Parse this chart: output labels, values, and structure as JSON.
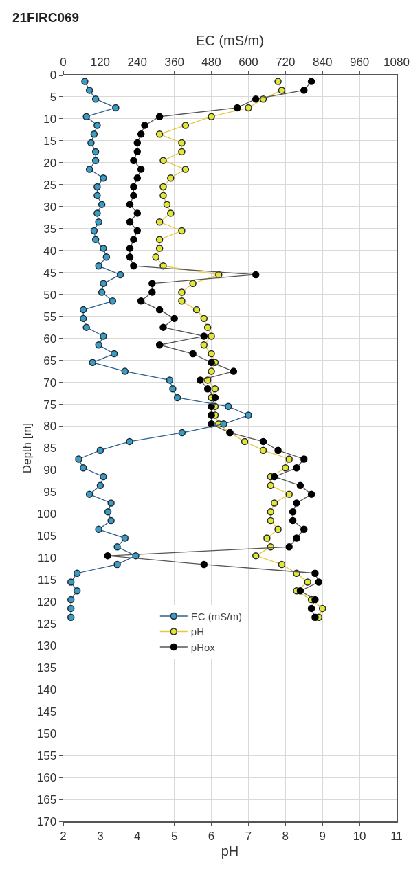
{
  "chart_data": {
    "type": "line",
    "title": "21FIRC069",
    "xlabel": "pH",
    "x2label": "EC (mS/m)",
    "ylabel": "Depth [m]",
    "xlim": [
      2,
      11
    ],
    "xticks": [
      2,
      3,
      4,
      5,
      6,
      7,
      8,
      9,
      10,
      11
    ],
    "x2lim": [
      0,
      1080
    ],
    "x2ticks": [
      0,
      120,
      240,
      360,
      480,
      600,
      720,
      840,
      960,
      1080
    ],
    "ylim": [
      170,
      0
    ],
    "yticks": [
      0,
      5,
      10,
      15,
      20,
      25,
      30,
      35,
      40,
      45,
      50,
      55,
      60,
      65,
      70,
      75,
      80,
      85,
      90,
      95,
      100,
      105,
      110,
      115,
      120,
      125,
      130,
      135,
      140,
      145,
      150,
      155,
      160,
      165,
      170
    ],
    "grid": true,
    "legend": "bottom",
    "marker": "circle",
    "line_style": "solid",
    "series": [
      {
        "name": "EC (mS/m)",
        "color": "#3b9cc4",
        "axis": "x2",
        "x": [
          70,
          85,
          105,
          170,
          75,
          110,
          100,
          90,
          105,
          105,
          85,
          130,
          110,
          110,
          125,
          110,
          115,
          100,
          105,
          130,
          140,
          115,
          185,
          130,
          125,
          160,
          65,
          65,
          75,
          130,
          115,
          165,
          95,
          200,
          345,
          355,
          370,
          535,
          600,
          520,
          385,
          215,
          120,
          50,
          65,
          130,
          120,
          85,
          155,
          145,
          155,
          115,
          200,
          175,
          235,
          175,
          45,
          25,
          45,
          25,
          25,
          25
        ],
        "values": [
          1.5,
          3.5,
          5.5,
          7.5,
          9.5,
          11.5,
          13.5,
          15.5,
          17.5,
          19.5,
          21.5,
          23.5,
          25.5,
          27.5,
          29.5,
          31.5,
          33.5,
          35.5,
          37.5,
          39.5,
          41.5,
          43.5,
          45.5,
          47.5,
          49.5,
          51.5,
          53.5,
          55.5,
          57.5,
          59.5,
          61.5,
          63.5,
          65.5,
          67.5,
          69.5,
          71.5,
          73.5,
          75.5,
          77.5,
          79.5,
          81.5,
          83.5,
          85.5,
          87.5,
          89.5,
          91.5,
          93.5,
          95.5,
          97.5,
          99.5,
          101.5,
          103.5,
          105.5,
          107.5,
          109.5,
          111.5,
          113.5,
          115.5,
          117.5,
          119.5,
          121.5,
          123.5
        ]
      },
      {
        "name": "pH",
        "color": "#e6e632",
        "x": [
          7.8,
          7.9,
          7.4,
          7.0,
          6.0,
          5.3,
          4.6,
          5.2,
          5.2,
          4.7,
          5.3,
          4.9,
          4.7,
          4.7,
          4.8,
          4.9,
          4.6,
          5.2,
          4.6,
          4.6,
          4.5,
          4.7,
          6.2,
          5.5,
          5.2,
          5.2,
          5.6,
          5.8,
          5.9,
          6.0,
          5.8,
          6.0,
          6.1,
          6.0,
          5.9,
          6.1,
          6.0,
          6.1,
          6.1,
          6.2,
          6.5,
          6.9,
          7.4,
          8.1,
          8.0,
          7.6,
          7.6,
          8.1,
          7.7,
          7.6,
          7.6,
          7.8,
          7.5,
          7.6,
          7.2,
          7.9,
          8.3,
          8.6,
          8.3,
          8.7,
          9.0,
          8.9
        ],
        "values": [
          1.5,
          3.5,
          5.5,
          7.5,
          9.5,
          11.5,
          13.5,
          15.5,
          17.5,
          19.5,
          21.5,
          23.5,
          25.5,
          27.5,
          29.5,
          31.5,
          33.5,
          35.5,
          37.5,
          39.5,
          41.5,
          43.5,
          45.5,
          47.5,
          49.5,
          51.5,
          53.5,
          55.5,
          57.5,
          59.5,
          61.5,
          63.5,
          65.5,
          67.5,
          69.5,
          71.5,
          73.5,
          75.5,
          77.5,
          79.5,
          81.5,
          83.5,
          85.5,
          87.5,
          89.5,
          91.5,
          93.5,
          95.5,
          97.5,
          99.5,
          101.5,
          103.5,
          105.5,
          107.5,
          109.5,
          111.5,
          113.5,
          115.5,
          117.5,
          119.5,
          121.5,
          123.5
        ]
      },
      {
        "name": "pHox",
        "color": "#000000",
        "x": [
          8.7,
          8.5,
          7.2,
          6.7,
          4.6,
          4.2,
          4.1,
          4.0,
          4.0,
          3.9,
          4.1,
          4.0,
          3.9,
          3.9,
          3.8,
          4.0,
          3.8,
          4.0,
          3.9,
          3.8,
          3.8,
          3.9,
          7.2,
          4.4,
          4.4,
          4.1,
          4.6,
          5.0,
          4.7,
          5.8,
          4.6,
          5.5,
          6.0,
          6.6,
          5.7,
          5.9,
          6.1,
          6.0,
          6.0,
          6.0,
          6.5,
          7.4,
          7.8,
          8.5,
          8.3,
          7.7,
          8.4,
          8.7,
          8.3,
          8.2,
          8.2,
          8.5,
          8.3,
          8.1,
          3.2,
          5.8,
          8.8,
          8.9,
          8.4,
          8.8,
          8.7,
          8.8
        ],
        "values": [
          1.5,
          3.5,
          5.5,
          7.5,
          9.5,
          11.5,
          13.5,
          15.5,
          17.5,
          19.5,
          21.5,
          23.5,
          25.5,
          27.5,
          29.5,
          31.5,
          33.5,
          35.5,
          37.5,
          39.5,
          41.5,
          43.5,
          45.5,
          47.5,
          49.5,
          51.5,
          53.5,
          55.5,
          57.5,
          59.5,
          61.5,
          63.5,
          65.5,
          67.5,
          69.5,
          71.5,
          73.5,
          75.5,
          77.5,
          79.5,
          81.5,
          83.5,
          85.5,
          87.5,
          89.5,
          91.5,
          93.5,
          95.5,
          97.5,
          99.5,
          101.5,
          103.5,
          105.5,
          107.5,
          109.5,
          111.5,
          113.5,
          115.5,
          117.5,
          119.5,
          121.5,
          123.5
        ]
      }
    ]
  }
}
